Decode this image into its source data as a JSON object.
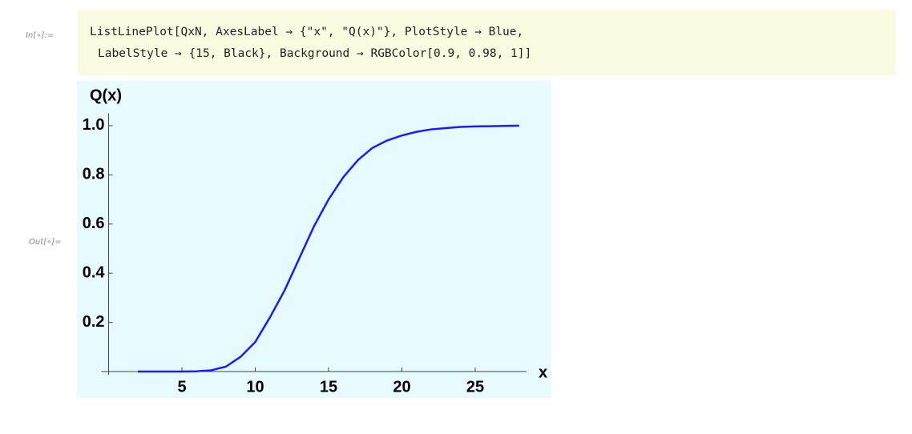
{
  "notebook": {
    "input_label": "In[∘]:=",
    "input_lines": [
      "ListLinePlot[QxN, AxesLabel → {\"x\", \"Q(x)\"}, PlotStyle → Blue,",
      "LabelStyle → {15, Black}, Background → RGBColor[0.9, 0.98, 1]]"
    ],
    "output_label": "Out[∘]="
  },
  "chart_data": {
    "type": "line",
    "x_label": "x",
    "y_label": "Q(x)",
    "x": [
      2,
      3,
      4,
      5,
      6,
      7,
      8,
      9,
      10,
      11,
      12,
      13,
      14,
      15,
      16,
      17,
      18,
      19,
      20,
      21,
      22,
      23,
      24,
      25,
      26,
      27,
      28
    ],
    "values": [
      0,
      0,
      0,
      0,
      0.001,
      0.005,
      0.02,
      0.06,
      0.12,
      0.22,
      0.33,
      0.46,
      0.59,
      0.7,
      0.79,
      0.86,
      0.91,
      0.94,
      0.96,
      0.975,
      0.985,
      0.99,
      0.995,
      0.997,
      0.998,
      0.999,
      1
    ],
    "color": "#1a1aff",
    "background": "#e6faff",
    "xlim": [
      -0.5,
      28.5
    ],
    "ylim": [
      0,
      1.05
    ],
    "xticks": [
      5,
      10,
      15,
      20,
      25
    ],
    "yticks": [
      0.2,
      0.4,
      0.6,
      0.8,
      {
        "value": 1,
        "label": "1.0"
      }
    ]
  }
}
